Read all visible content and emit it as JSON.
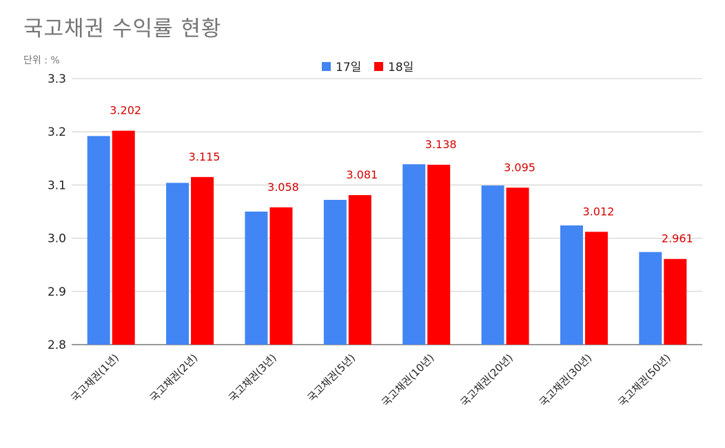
{
  "chart_data": {
    "type": "bar",
    "title": "국고채권 수익률 현황",
    "unit_label": "단위 : %",
    "categories": [
      "국고채권(1년)",
      "국고채권(2년)",
      "국고채권(3년)",
      "국고채권(5년)",
      "국고채권(10년)",
      "국고채권(20년)",
      "국고채권(30년)",
      "국고채권(50년)"
    ],
    "series": [
      {
        "name": "17일",
        "color": "#4285f4",
        "values": [
          3.192,
          3.104,
          3.05,
          3.072,
          3.139,
          3.099,
          3.024,
          2.974
        ]
      },
      {
        "name": "18일",
        "color": "#ff0000",
        "values": [
          3.202,
          3.115,
          3.058,
          3.081,
          3.138,
          3.095,
          3.012,
          2.961
        ]
      }
    ],
    "data_labels": [
      "3.202",
      "3.115",
      "3.058",
      "3.081",
      "3.138",
      "3.095",
      "3.012",
      "2.961"
    ],
    "ylim": [
      2.8,
      3.3
    ],
    "yticks": [
      "2.8",
      "2.9",
      "3.0",
      "3.1",
      "3.2",
      "3.3"
    ],
    "legend": "top-center",
    "grid": true
  }
}
